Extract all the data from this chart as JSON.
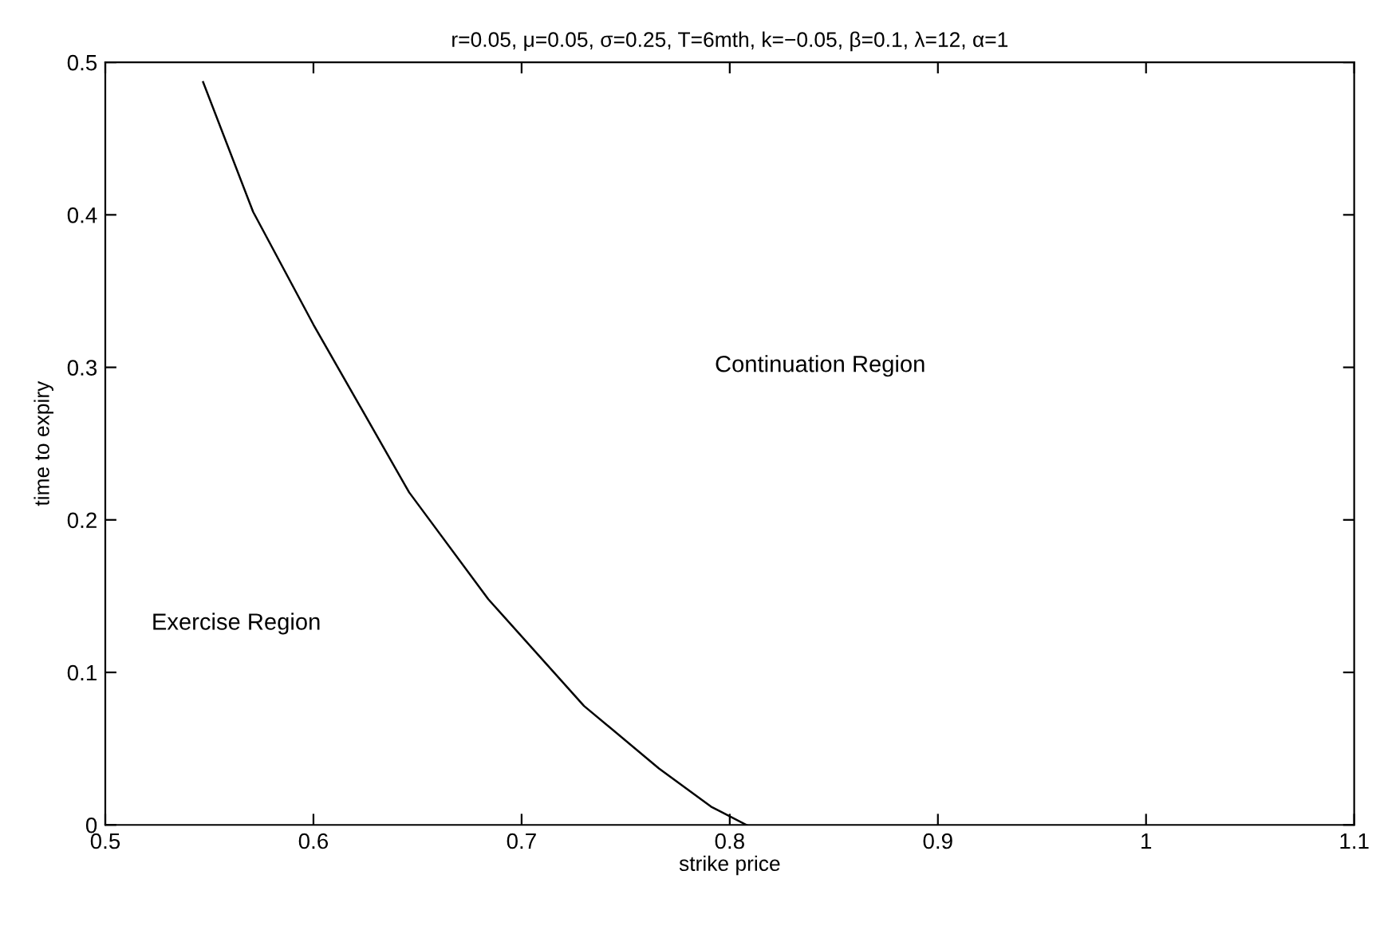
{
  "chart_data": {
    "type": "line",
    "title": "r=0.05, μ=0.05, σ=0.25, T=6mth, k=−0.05, β=0.1, λ=12, α=1",
    "xlabel": "strike price",
    "ylabel": "time to expiry",
    "annotations": [
      "Exercise Region",
      "Continuation Region"
    ],
    "series": [
      {
        "color": "#000000",
        "x": [
          0.547,
          0.571,
          0.6,
          0.623,
          0.646,
          0.684,
          0.73,
          0.766,
          0.791,
          0.808
        ],
        "values": [
          0.487,
          0.402,
          0.328,
          0.273,
          0.218,
          0.148,
          0.078,
          0.037,
          0.012,
          0.0
        ]
      }
    ],
    "xlim": [
      0.5,
      1.1
    ],
    "xticks": [
      0.5,
      0.6,
      0.7,
      0.8,
      0.9,
      1,
      1.1
    ],
    "ylim": [
      0,
      0.5
    ],
    "yticks": [
      0,
      0.1,
      0.2,
      0.3,
      0.4,
      0.5
    ],
    "grid": false,
    "legend": false,
    "marker": "none",
    "line_style": "solid"
  }
}
